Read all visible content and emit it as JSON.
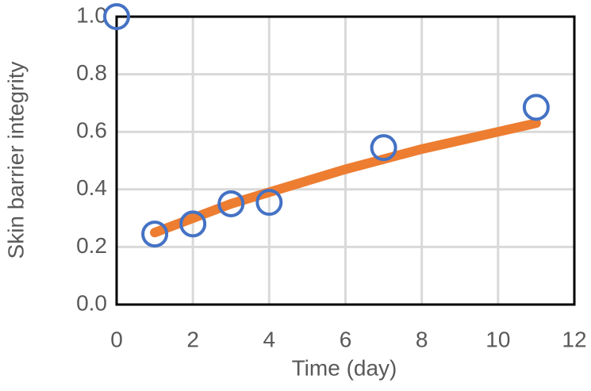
{
  "chart_data": {
    "type": "scatter",
    "xlabel": "Time (day)",
    "ylabel": "Skin barrier integrity",
    "xlim": [
      0,
      12
    ],
    "xticks": [
      0,
      2,
      4,
      6,
      8,
      10,
      12
    ],
    "ylim": [
      0,
      1
    ],
    "yticks": [
      {
        "value": 0,
        "label": "0.0"
      },
      {
        "value": 0.2,
        "label": "0.2"
      },
      {
        "value": 0.4,
        "label": "0.4"
      },
      {
        "value": 0.6,
        "label": "0.6"
      },
      {
        "value": 0.8,
        "label": "0.8"
      },
      {
        "value": 1,
        "label": "1.0"
      }
    ],
    "grid": true,
    "series": [
      {
        "type": "line",
        "color": "#ed7d31",
        "x": [
          1,
          2,
          3,
          4,
          5,
          6,
          7,
          8,
          9,
          10,
          11
        ],
        "values": [
          0.25,
          0.3,
          0.35,
          0.39,
          0.43,
          0.47,
          0.505,
          0.54,
          0.57,
          0.6,
          0.63
        ]
      },
      {
        "type": "scatter",
        "color": "#4472c4",
        "x": [
          0,
          1,
          2,
          3,
          4,
          7,
          11
        ],
        "values": [
          1.0,
          0.245,
          0.28,
          0.35,
          0.355,
          0.545,
          0.685
        ]
      }
    ]
  }
}
